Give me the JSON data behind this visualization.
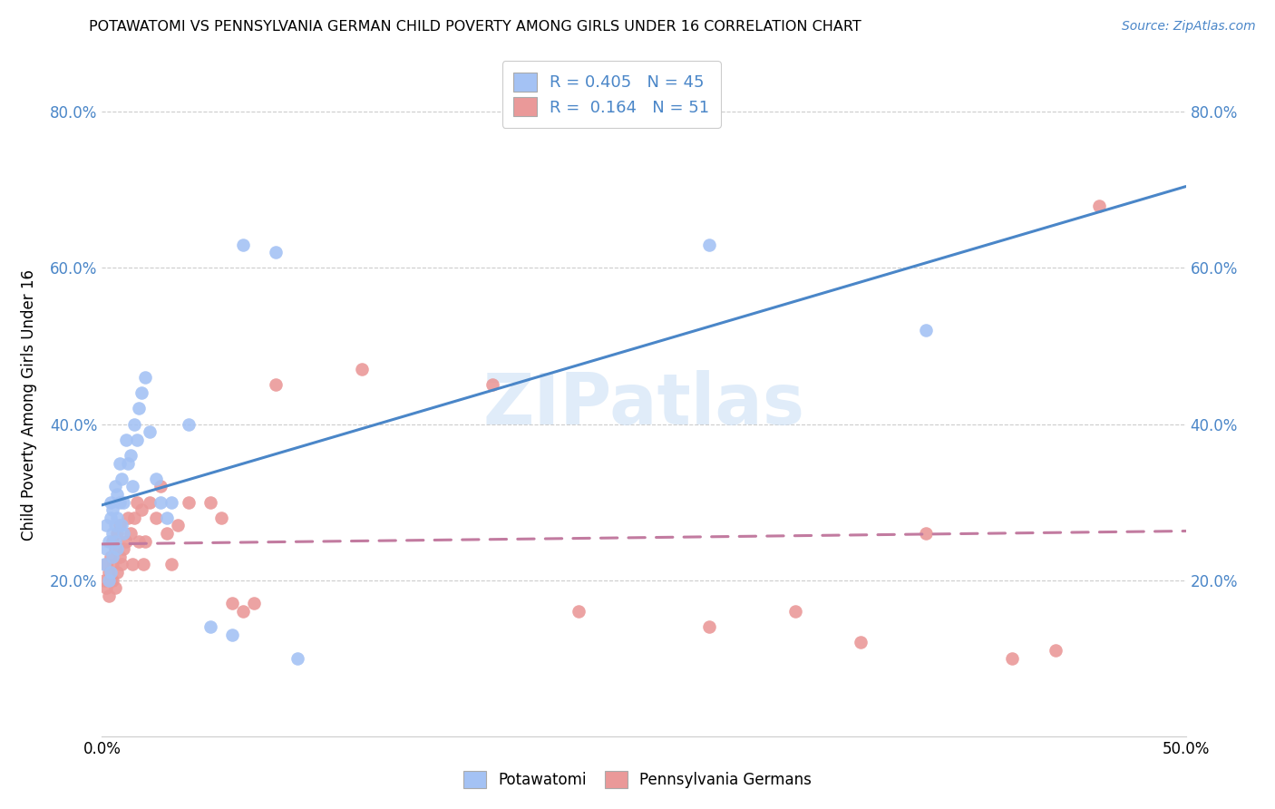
{
  "title": "POTAWATOMI VS PENNSYLVANIA GERMAN CHILD POVERTY AMONG GIRLS UNDER 16 CORRELATION CHART",
  "source": "Source: ZipAtlas.com",
  "ylabel": "Child Poverty Among Girls Under 16",
  "blue_color": "#a4c2f4",
  "pink_color": "#ea9999",
  "line_blue": "#4a86c8",
  "line_pink": "#c27ba0",
  "watermark": "ZIPatlas",
  "potawatomi_x": [
    0.001,
    0.002,
    0.002,
    0.003,
    0.003,
    0.004,
    0.004,
    0.004,
    0.005,
    0.005,
    0.005,
    0.006,
    0.006,
    0.006,
    0.007,
    0.007,
    0.007,
    0.008,
    0.008,
    0.009,
    0.009,
    0.01,
    0.01,
    0.011,
    0.012,
    0.013,
    0.014,
    0.015,
    0.016,
    0.017,
    0.018,
    0.02,
    0.022,
    0.025,
    0.027,
    0.03,
    0.032,
    0.04,
    0.05,
    0.06,
    0.065,
    0.08,
    0.09,
    0.28,
    0.38
  ],
  "potawatomi_y": [
    0.22,
    0.24,
    0.27,
    0.2,
    0.25,
    0.21,
    0.28,
    0.3,
    0.23,
    0.26,
    0.29,
    0.25,
    0.27,
    0.32,
    0.24,
    0.28,
    0.31,
    0.3,
    0.35,
    0.27,
    0.33,
    0.26,
    0.3,
    0.38,
    0.35,
    0.36,
    0.32,
    0.4,
    0.38,
    0.42,
    0.44,
    0.46,
    0.39,
    0.33,
    0.3,
    0.28,
    0.3,
    0.4,
    0.14,
    0.13,
    0.63,
    0.62,
    0.1,
    0.63,
    0.52
  ],
  "penn_german_x": [
    0.001,
    0.002,
    0.002,
    0.003,
    0.003,
    0.004,
    0.004,
    0.005,
    0.005,
    0.005,
    0.006,
    0.006,
    0.007,
    0.007,
    0.008,
    0.008,
    0.009,
    0.01,
    0.011,
    0.012,
    0.013,
    0.014,
    0.015,
    0.016,
    0.017,
    0.018,
    0.019,
    0.02,
    0.022,
    0.025,
    0.027,
    0.03,
    0.032,
    0.035,
    0.04,
    0.05,
    0.055,
    0.06,
    0.065,
    0.07,
    0.08,
    0.12,
    0.18,
    0.22,
    0.28,
    0.32,
    0.35,
    0.38,
    0.42,
    0.44,
    0.46
  ],
  "penn_german_y": [
    0.2,
    0.19,
    0.22,
    0.18,
    0.21,
    0.2,
    0.23,
    0.2,
    0.22,
    0.25,
    0.19,
    0.24,
    0.21,
    0.26,
    0.23,
    0.27,
    0.22,
    0.24,
    0.25,
    0.28,
    0.26,
    0.22,
    0.28,
    0.3,
    0.25,
    0.29,
    0.22,
    0.25,
    0.3,
    0.28,
    0.32,
    0.26,
    0.22,
    0.27,
    0.3,
    0.3,
    0.28,
    0.17,
    0.16,
    0.17,
    0.45,
    0.47,
    0.45,
    0.16,
    0.14,
    0.16,
    0.12,
    0.26,
    0.1,
    0.11,
    0.68
  ],
  "xlim": [
    0.0,
    0.5
  ],
  "ylim": [
    0.0,
    0.85
  ],
  "xtick_left_label": "0.0%",
  "xtick_right_label": "50.0%",
  "ytick_positions": [
    0.2,
    0.4,
    0.6,
    0.8
  ],
  "ytick_labels": [
    "20.0%",
    "40.0%",
    "60.0%",
    "80.0%"
  ],
  "background_color": "#ffffff"
}
